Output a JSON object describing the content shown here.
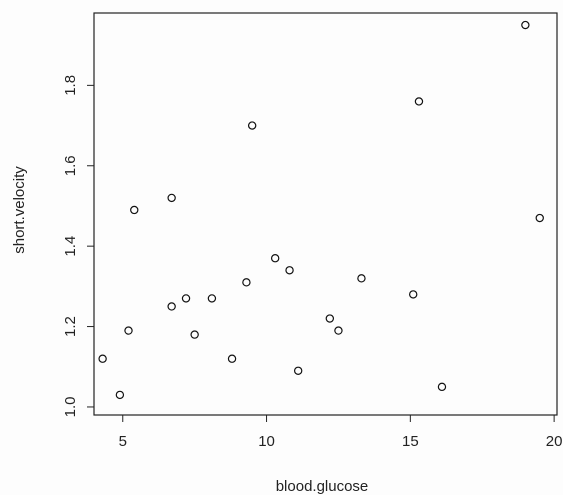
{
  "chart_data": {
    "type": "scatter",
    "xlabel": "blood.glucose",
    "ylabel": "short.velocity",
    "xlim": [
      4.0,
      20.1
    ],
    "ylim": [
      0.98,
      1.98
    ],
    "x_ticks": [
      5,
      10,
      15,
      20
    ],
    "y_ticks": [
      1.0,
      1.2,
      1.4,
      1.6,
      1.8
    ],
    "x_tick_labels": [
      "5",
      "10",
      "15",
      "20"
    ],
    "y_tick_labels": [
      "1.0",
      "1.2",
      "1.4",
      "1.6",
      "1.8"
    ],
    "grid": false,
    "marker": "open-circle",
    "points": [
      {
        "x": 4.3,
        "y": 1.12
      },
      {
        "x": 4.9,
        "y": 1.03
      },
      {
        "x": 5.2,
        "y": 1.19
      },
      {
        "x": 5.4,
        "y": 1.49
      },
      {
        "x": 6.7,
        "y": 1.52
      },
      {
        "x": 6.7,
        "y": 1.25
      },
      {
        "x": 7.2,
        "y": 1.27
      },
      {
        "x": 7.5,
        "y": 1.18
      },
      {
        "x": 8.1,
        "y": 1.27
      },
      {
        "x": 8.8,
        "y": 1.12
      },
      {
        "x": 9.3,
        "y": 1.31
      },
      {
        "x": 9.5,
        "y": 1.7
      },
      {
        "x": 10.3,
        "y": 1.37
      },
      {
        "x": 10.8,
        "y": 1.34
      },
      {
        "x": 11.1,
        "y": 1.09
      },
      {
        "x": 12.2,
        "y": 1.22
      },
      {
        "x": 12.5,
        "y": 1.19
      },
      {
        "x": 13.3,
        "y": 1.32
      },
      {
        "x": 15.1,
        "y": 1.28
      },
      {
        "x": 15.3,
        "y": 1.76
      },
      {
        "x": 16.1,
        "y": 1.05
      },
      {
        "x": 19.0,
        "y": 1.95
      },
      {
        "x": 19.5,
        "y": 1.47
      }
    ]
  },
  "colors": {
    "axis": "#222222",
    "point_stroke": "#111111",
    "background": "#fdfdfd"
  }
}
